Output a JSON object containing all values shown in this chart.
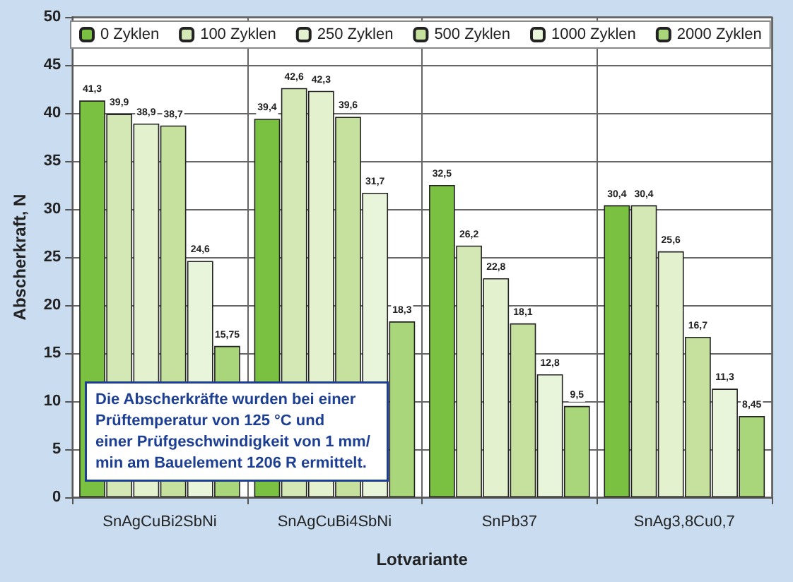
{
  "chart_data": {
    "type": "bar",
    "xlabel": "Lotvariante",
    "ylabel": "Abscherkraft, N",
    "categories": [
      "SnAgCuBi2SbNi",
      "SnAgCuBi4SbNi",
      "SnPb37",
      "SnAg3,8Cu0,7"
    ],
    "series": [
      {
        "name": "0 Zyklen",
        "color": "#7ac142",
        "values": [
          41.3,
          39.4,
          32.5,
          30.4
        ],
        "value_labels": [
          "41,3",
          "39,4",
          "32,5",
          "30,4"
        ]
      },
      {
        "name": "100 Zyklen",
        "color": "#d3e8b5",
        "values": [
          39.9,
          42.6,
          26.2,
          30.4
        ],
        "value_labels": [
          "39,9",
          "42,6",
          "26,2",
          "30,4"
        ]
      },
      {
        "name": "250 Zyklen",
        "color": "#e3f1cf",
        "values": [
          38.9,
          42.3,
          22.8,
          25.6
        ],
        "value_labels": [
          "38,9",
          "42,3",
          "22,8",
          "25,6"
        ]
      },
      {
        "name": "500 Zyklen",
        "color": "#c6e09e",
        "values": [
          38.7,
          39.6,
          18.1,
          16.7
        ],
        "value_labels": [
          "38,7",
          "39,6",
          "18,1",
          "16,7"
        ]
      },
      {
        "name": "1000 Zyklen",
        "color": "#e9f5db",
        "values": [
          24.6,
          31.7,
          12.8,
          11.3
        ],
        "value_labels": [
          "24,6",
          "31,7",
          "12,8",
          "11,3"
        ]
      },
      {
        "name": "2000 Zyklen",
        "color": "#a9d67a",
        "values": [
          15.75,
          18.3,
          9.5,
          8.45
        ],
        "value_labels": [
          "15,75",
          "18,3",
          "9,5",
          "8,45"
        ]
      }
    ],
    "ylim": [
      0,
      50
    ],
    "yticks": [
      0,
      5,
      10,
      15,
      20,
      25,
      30,
      35,
      40,
      45,
      50
    ],
    "grid": true,
    "legend": "top",
    "annotations": [
      "Die Abscherkräfte wurden bei einer Prüftemperatur von 125 °C und einer Prüfgeschwindigkeit von 1 mm/min am Bauelement 1206 R ermittelt."
    ]
  }
}
